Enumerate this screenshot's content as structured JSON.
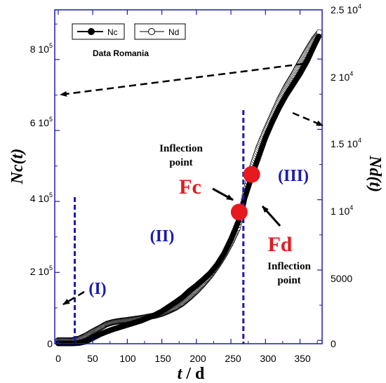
{
  "chart_data": {
    "type": "scatter",
    "xlabel_var": "t",
    "xlabel_unit": " / d",
    "ylabel": "Nc(t)",
    "y2label": "Nd(t)",
    "x_ticks": [
      "0",
      "50",
      "100",
      "150",
      "200",
      "250",
      "300",
      "350"
    ],
    "y_ticks": [
      {
        "mant": "0",
        "exp": ""
      },
      {
        "mant": "2 10",
        "exp": "5"
      },
      {
        "mant": "4 10",
        "exp": "5"
      },
      {
        "mant": "6 10",
        "exp": "5"
      },
      {
        "mant": "8 10",
        "exp": "5"
      }
    ],
    "y2_ticks": [
      {
        "mant": "0",
        "exp": ""
      },
      {
        "mant": "5000",
        "exp": ""
      },
      {
        "mant": "1 10",
        "exp": "4"
      },
      {
        "mant": "1.5 10",
        "exp": "4"
      },
      {
        "mant": "2 10",
        "exp": "4"
      },
      {
        "mant": "2.5 10",
        "exp": "4"
      }
    ],
    "xlim": [
      -5,
      382
    ],
    "ylim": [
      -1000,
      940000
    ],
    "y2lim": [
      -240,
      23500
    ],
    "series": [
      {
        "name": "Nc",
        "axis": "left",
        "marker": "filled-circle",
        "points": [
          [
            0,
            0
          ],
          [
            20,
            0
          ],
          [
            30,
            1000
          ],
          [
            40,
            5000
          ],
          [
            50,
            15000
          ],
          [
            60,
            25000
          ],
          [
            70,
            33000
          ],
          [
            80,
            40000
          ],
          [
            90,
            46000
          ],
          [
            100,
            52000
          ],
          [
            120,
            64000
          ],
          [
            140,
            80000
          ],
          [
            150,
            90000
          ],
          [
            160,
            103000
          ],
          [
            170,
            116000
          ],
          [
            180,
            130000
          ],
          [
            190,
            148000
          ],
          [
            200,
            163000
          ],
          [
            210,
            180000
          ],
          [
            220,
            198000
          ],
          [
            230,
            222000
          ],
          [
            240,
            253000
          ],
          [
            250,
            293000
          ],
          [
            260,
            340000
          ],
          [
            265,
            370000
          ],
          [
            270,
            410000
          ],
          [
            280,
            470000
          ],
          [
            290,
            525000
          ],
          [
            300,
            580000
          ],
          [
            310,
            625000
          ],
          [
            320,
            665000
          ],
          [
            330,
            700000
          ],
          [
            340,
            730000
          ],
          [
            350,
            760000
          ],
          [
            360,
            795000
          ],
          [
            370,
            837000
          ],
          [
            377,
            865000
          ]
        ]
      },
      {
        "name": "Nd",
        "axis": "right",
        "marker": "open-circle",
        "points": [
          [
            0,
            0
          ],
          [
            20,
            0
          ],
          [
            25,
            60
          ],
          [
            30,
            110
          ],
          [
            40,
            330
          ],
          [
            50,
            620
          ],
          [
            60,
            880
          ],
          [
            70,
            1160
          ],
          [
            80,
            1300
          ],
          [
            90,
            1380
          ],
          [
            100,
            1440
          ],
          [
            110,
            1510
          ],
          [
            120,
            1580
          ],
          [
            130,
            1670
          ],
          [
            140,
            1760
          ],
          [
            150,
            1900
          ],
          [
            160,
            2100
          ],
          [
            170,
            2330
          ],
          [
            180,
            2640
          ],
          [
            190,
            3050
          ],
          [
            200,
            3500
          ],
          [
            210,
            4020
          ],
          [
            220,
            4600
          ],
          [
            230,
            5280
          ],
          [
            240,
            6050
          ],
          [
            250,
            6950
          ],
          [
            260,
            8000
          ],
          [
            265,
            9000
          ],
          [
            270,
            10300
          ],
          [
            280,
            12200
          ],
          [
            290,
            13700
          ],
          [
            300,
            14900
          ],
          [
            310,
            16000
          ],
          [
            320,
            17100
          ],
          [
            330,
            18050
          ],
          [
            340,
            18850
          ],
          [
            350,
            19750
          ],
          [
            360,
            20600
          ],
          [
            370,
            21400
          ],
          [
            378,
            21900
          ]
        ]
      }
    ],
    "vertical_lines_x": [
      24,
      268
    ],
    "annotations": {
      "data_label": "Data Romania",
      "region_1": "(I)",
      "region_2": "(II)",
      "region_3": "(III)",
      "fc_label": "Fc",
      "fd_label": "Fd",
      "inflection_1_line1": "Inflection",
      "inflection_1_line2": "point",
      "inflection_2_line1": "Inflection",
      "inflection_2_line2": "point"
    },
    "highlight_points": [
      {
        "name": "Fc",
        "x": 262,
        "y": 370000,
        "axis": "left",
        "color": "#e6191e"
      },
      {
        "name": "Fd",
        "x": 280,
        "y": 11800,
        "axis": "right",
        "color": "#e6191e"
      }
    ],
    "colors": {
      "axes": "#1a1ab4",
      "divider": "#1a1ab4",
      "point": "#e6191e",
      "region_text": "#1a1ab4"
    },
    "legend_position": "top-left",
    "grid": false
  }
}
